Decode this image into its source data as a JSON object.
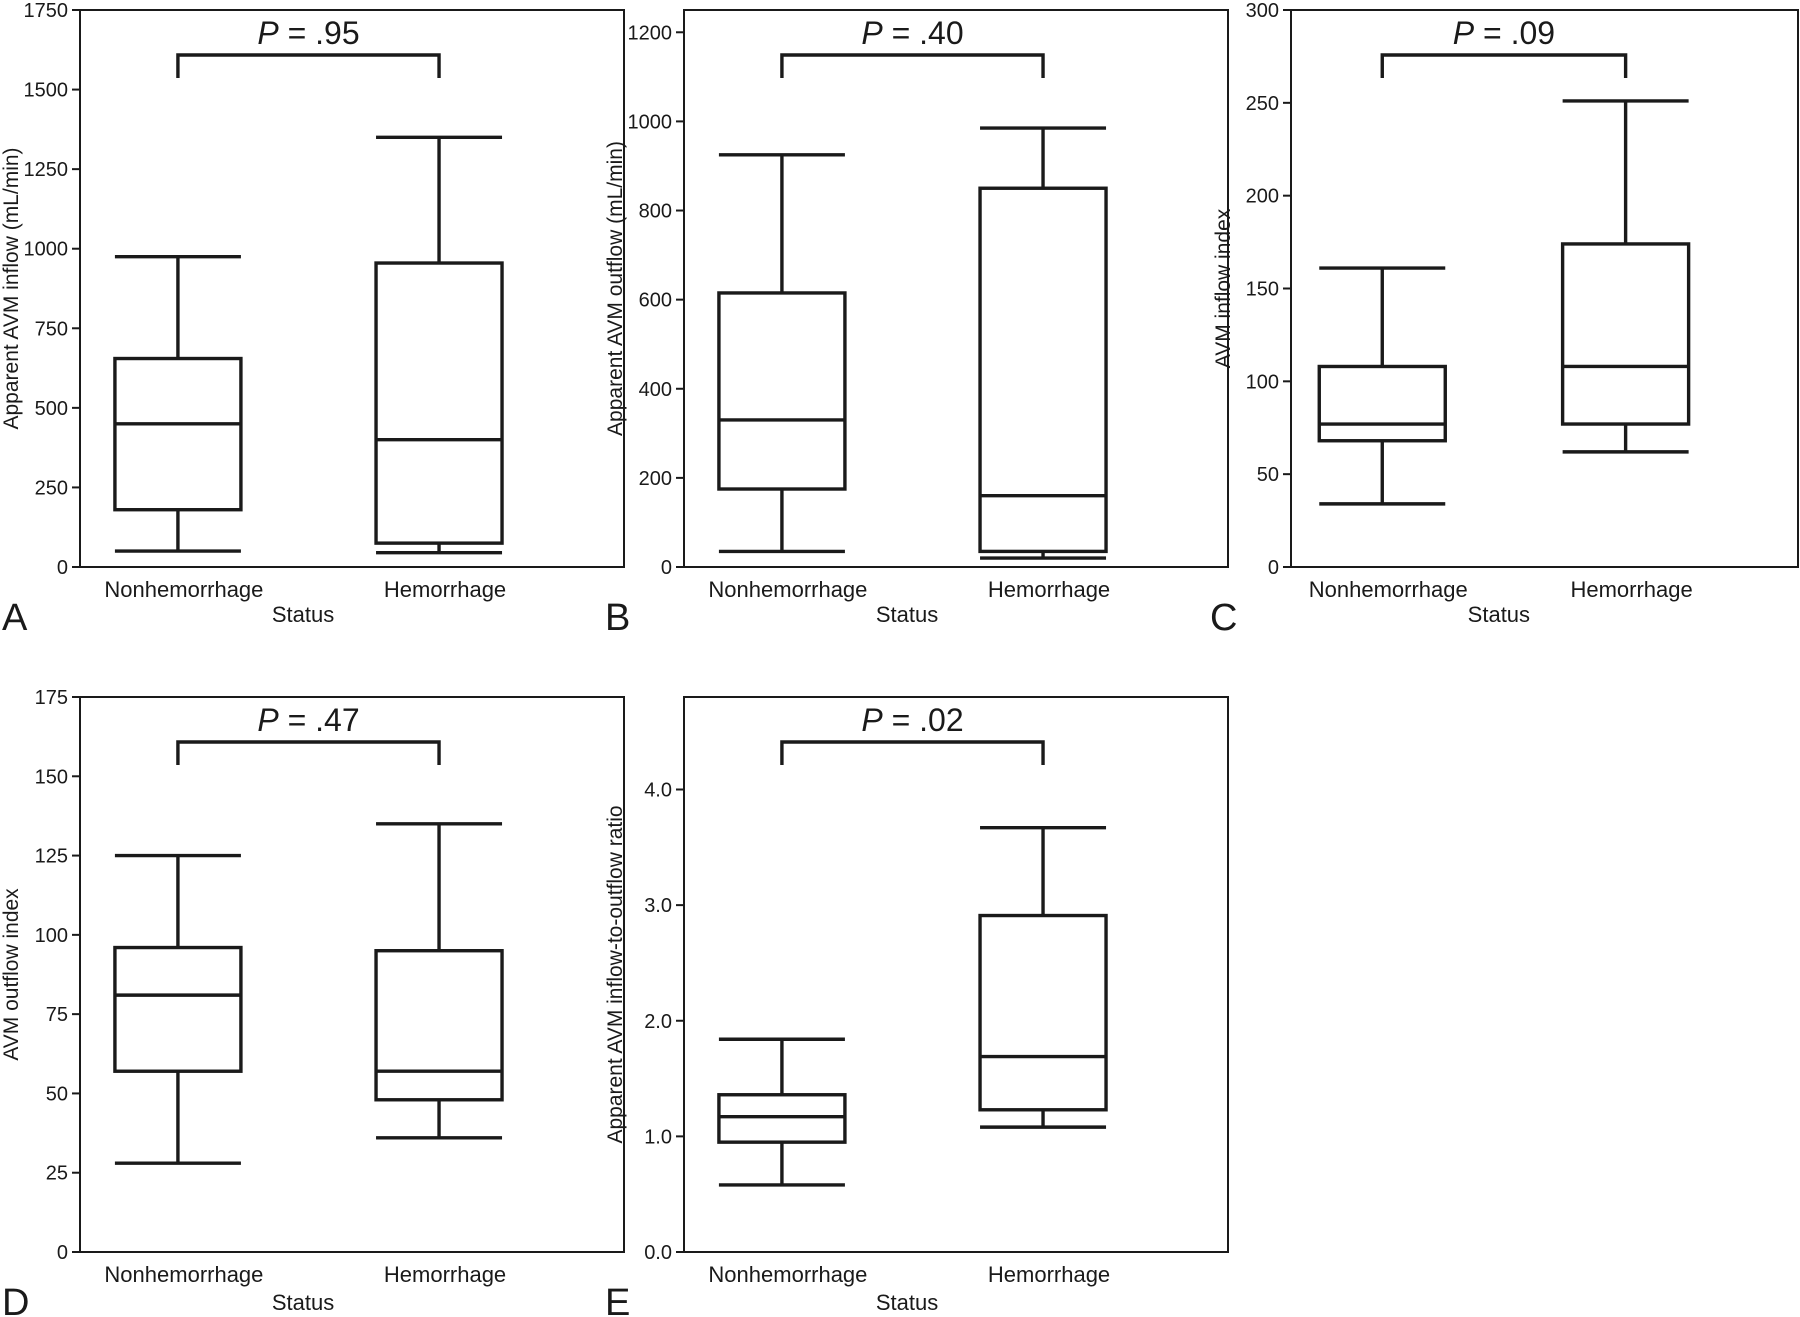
{
  "chart_data": [
    {
      "panel": "A",
      "type": "box",
      "ylabel": "Apparent AVM inflow (mL/min)",
      "xlabel": "Status",
      "ylim": [
        0,
        1750
      ],
      "yticks": [
        0,
        250,
        500,
        750,
        1000,
        1250,
        1500,
        1750
      ],
      "tick_labels": [
        "0",
        "250",
        "500",
        "750",
        "1000",
        "1250",
        "1500",
        "1750"
      ],
      "categories": [
        "Nonhemorrhage",
        "Hemorrhage"
      ],
      "boxes": [
        {
          "min": 50,
          "q1": 180,
          "median": 450,
          "q3": 655,
          "max": 975
        },
        {
          "min": 45,
          "q1": 75,
          "median": 400,
          "q3": 955,
          "max": 1350
        }
      ],
      "p_italic": "P",
      "p_rest": " = .95"
    },
    {
      "panel": "B",
      "type": "box",
      "ylabel": "Apparent AVM outflow (mL/min)",
      "xlabel": "Status",
      "ylim": [
        0,
        1250
      ],
      "yticks": [
        0,
        200,
        400,
        600,
        800,
        1000,
        1200
      ],
      "tick_labels": [
        "0",
        "200",
        "400",
        "600",
        "800",
        "1000",
        "1200"
      ],
      "categories": [
        "Nonhemorrhage",
        "Hemorrhage"
      ],
      "boxes": [
        {
          "min": 35,
          "q1": 175,
          "median": 330,
          "q3": 615,
          "max": 925
        },
        {
          "min": 20,
          "q1": 35,
          "median": 160,
          "q3": 850,
          "max": 985
        }
      ],
      "p_italic": "P",
      "p_rest": " = .40"
    },
    {
      "panel": "C",
      "type": "box",
      "ylabel": "AVM inflow index",
      "xlabel": "Status",
      "ylim": [
        0,
        300
      ],
      "yticks": [
        0,
        50,
        100,
        150,
        200,
        250,
        300
      ],
      "tick_labels": [
        "0",
        "50",
        "100",
        "150",
        "200",
        "250",
        "300"
      ],
      "categories": [
        "Nonhemorrhage",
        "Hemorrhage"
      ],
      "boxes": [
        {
          "min": 34,
          "q1": 68,
          "median": 77,
          "q3": 108,
          "max": 161
        },
        {
          "min": 62,
          "q1": 77,
          "median": 108,
          "q3": 174,
          "max": 251
        }
      ],
      "p_italic": "P",
      "p_rest": " = .09"
    },
    {
      "panel": "D",
      "type": "box",
      "ylabel": "AVM outflow index",
      "xlabel": "Status",
      "ylim": [
        0,
        175
      ],
      "yticks": [
        0,
        25,
        50,
        75,
        100,
        125,
        150,
        175
      ],
      "tick_labels": [
        "0",
        "25",
        "50",
        "75",
        "100",
        "125",
        "150",
        "175"
      ],
      "categories": [
        "Nonhemorrhage",
        "Hemorrhage"
      ],
      "boxes": [
        {
          "min": 28,
          "q1": 57,
          "median": 81,
          "q3": 96,
          "max": 125
        },
        {
          "min": 36,
          "q1": 48,
          "median": 57,
          "q3": 95,
          "max": 135
        }
      ],
      "p_italic": "P",
      "p_rest": " = .47"
    },
    {
      "panel": "E",
      "type": "box",
      "ylabel": "Apparent AVM inflow-to-outflow ratio",
      "xlabel": "Status",
      "ylim": [
        0,
        4.8
      ],
      "yticks": [
        0,
        1,
        2,
        3,
        4
      ],
      "tick_labels": [
        "0.0",
        "1.0",
        "2.0",
        "3.0",
        "4.0"
      ],
      "categories": [
        "Nonhemorrhage",
        "Hemorrhage"
      ],
      "boxes": [
        {
          "min": 0.58,
          "q1": 0.95,
          "median": 1.17,
          "q3": 1.36,
          "max": 1.84
        },
        {
          "min": 1.08,
          "q1": 1.23,
          "median": 1.69,
          "q3": 2.91,
          "max": 3.67
        }
      ],
      "p_italic": "P",
      "p_rest": " = .02"
    }
  ]
}
